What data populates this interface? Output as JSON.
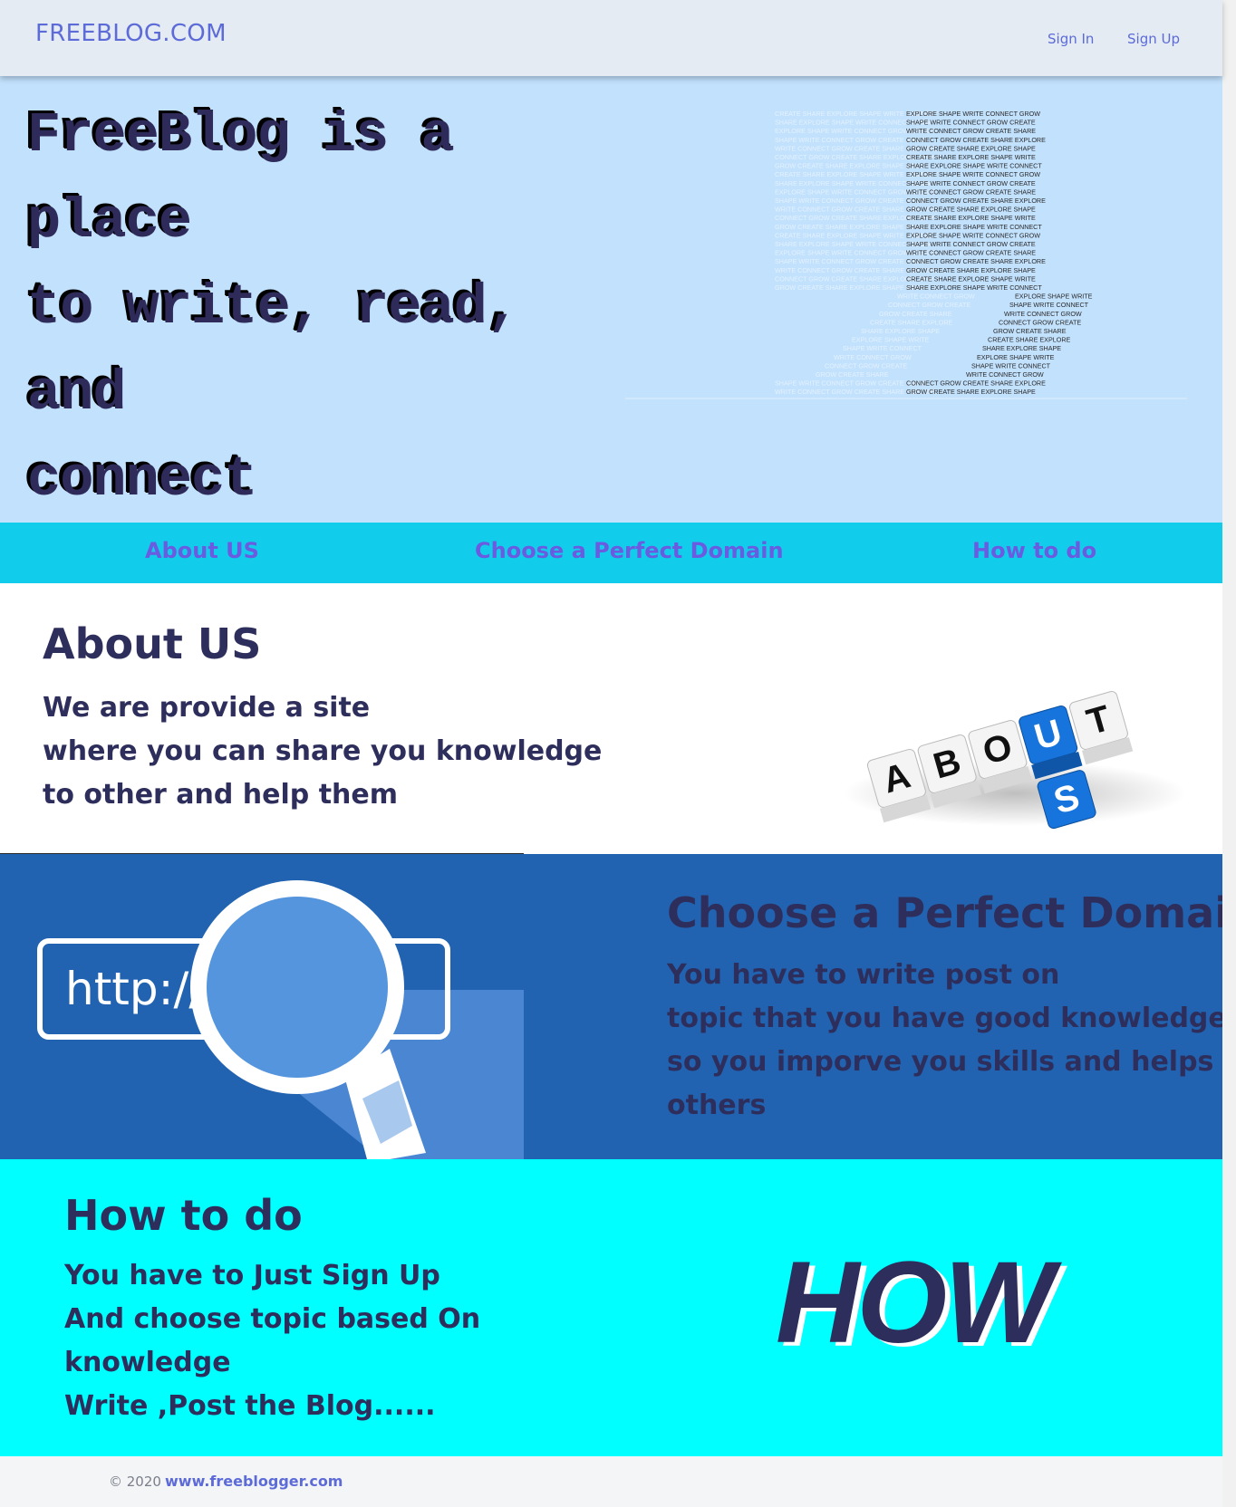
{
  "navbar": {
    "brand": "FREEBLOG.COM",
    "sign_in": "Sign In",
    "sign_up": "Sign Up"
  },
  "hero": {
    "title_lines": [
      "FreeBlog is a",
      "place",
      "to write, read,",
      "and",
      "connect"
    ],
    "word_art_words": [
      "CREATE",
      "SHARE",
      "EXPLORE",
      "SHAPE",
      "WRITE",
      "CONNECT",
      "GROW"
    ]
  },
  "section_nav": {
    "about": "About US",
    "domain": "Choose a Perfect Domain",
    "how": "How to do"
  },
  "about": {
    "title": "About US",
    "lines": [
      "We are provide a site",
      "where you can share you knowledge",
      "to other and help them"
    ],
    "image_letters_top": [
      "A",
      "B",
      "O",
      "U",
      "T"
    ],
    "image_letter_s": "S"
  },
  "domain": {
    "title": "Choose a Perfect Domain",
    "lines": [
      "You have to write post on",
      "topic that you have good knowledge",
      "so you imporve you skills and helps to",
      "others"
    ],
    "image_text": "http://domain"
  },
  "how": {
    "title": "How to do",
    "lines": [
      "You have to Just Sign Up",
      "And choose topic based On",
      "knowledge",
      "Write ,Post the Blog......"
    ],
    "big_word": "HOW"
  },
  "footer": {
    "copyright": "© 2020",
    "link": "www.freeblogger.com"
  },
  "colors": {
    "brand": "#5c6bd8",
    "navbar_bg": "#e4ebf3",
    "hero_bg": "#c2e1fd",
    "section_nav_bg": "#11cdeb",
    "domain_bg": "#2163b0",
    "how_bg": "#00ffff",
    "heading": "#2e2e5c"
  }
}
